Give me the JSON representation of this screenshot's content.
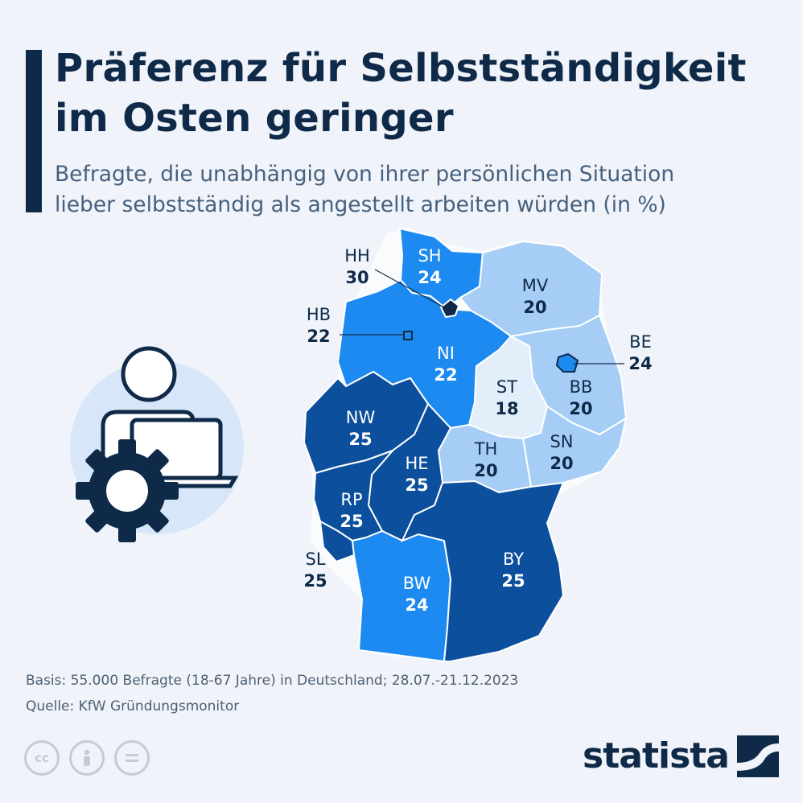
{
  "title_line1": "Präferenz für Selbstständigkeit",
  "title_line2": "im Osten geringer",
  "subtitle_line1": "Befragte, die unabhängig von ihrer persönlichen Situation",
  "subtitle_line2": "lieber selbstständig als angestellt arbeiten würden (in %)",
  "colors": {
    "low": "#a6cdf5",
    "mid": "#1c8af0",
    "high": "#0c4f9c",
    "navy": "#0f2a48"
  },
  "states": [
    {
      "code": "SH",
      "value": 24
    },
    {
      "code": "HH",
      "value": 30
    },
    {
      "code": "MV",
      "value": 20
    },
    {
      "code": "HB",
      "value": 22
    },
    {
      "code": "NI",
      "value": 22
    },
    {
      "code": "BE",
      "value": 24
    },
    {
      "code": "ST",
      "value": 18
    },
    {
      "code": "BB",
      "value": 20
    },
    {
      "code": "NW",
      "value": 25
    },
    {
      "code": "SN",
      "value": 20
    },
    {
      "code": "TH",
      "value": 20
    },
    {
      "code": "HE",
      "value": 25
    },
    {
      "code": "RP",
      "value": 25
    },
    {
      "code": "SL",
      "value": 25
    },
    {
      "code": "BY",
      "value": 25
    },
    {
      "code": "BW",
      "value": 24
    }
  ],
  "footer": {
    "basis": "Basis: 55.000 Befragte (18-67 Jahre) in Deutschland; 28.07.-21.12.2023",
    "source": "Quelle: KfW Gründungsmonitor"
  },
  "license_icons": [
    "cc-icon",
    "attribution-icon",
    "no-derivatives-icon"
  ],
  "brand": "statista"
}
